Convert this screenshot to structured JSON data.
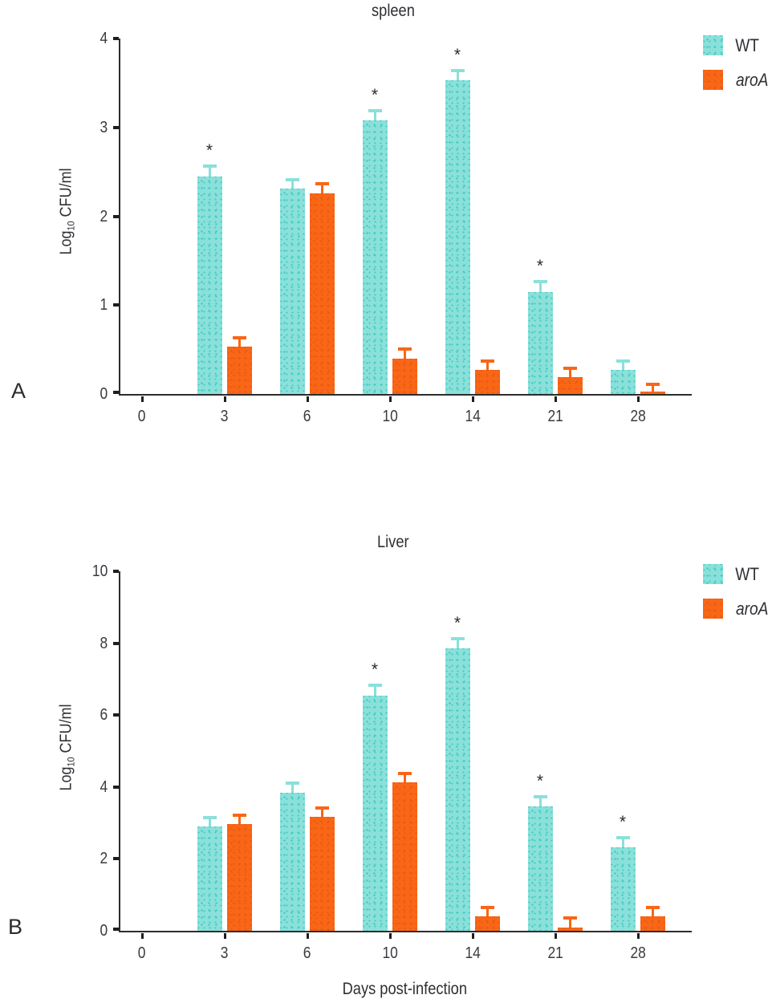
{
  "figure_title": "",
  "sig_marker": "*",
  "chart_data": [
    {
      "type": "bar",
      "panel_label": "A",
      "title": "spleen",
      "ylabel": "Log10 CFU/ml",
      "ylabel_parts": {
        "prefix": "Log",
        "sub": "10",
        "suffix": " CFU/ml"
      },
      "xlabel": "",
      "ylim": [
        0,
        4
      ],
      "yticks": [
        0,
        1,
        2,
        3,
        4
      ],
      "categories": [
        "0",
        "3",
        "6",
        "10",
        "14",
        "21",
        "28"
      ],
      "grid": false,
      "legend_position": "top-right",
      "series": [
        {
          "name": "WT",
          "color": "#8BE0DA",
          "dot_color": "#3FCCC4",
          "values": [
            0,
            2.45,
            2.31,
            3.08,
            3.53,
            1.15,
            0.27
          ],
          "errors": [
            0,
            0.13,
            0.12,
            0.13,
            0.13,
            0.13,
            0.12
          ],
          "significant": [
            false,
            true,
            false,
            true,
            true,
            true,
            false
          ]
        },
        {
          "name": "aroA",
          "color": "#F96617",
          "dot_color": "#E85A0C",
          "values": [
            0,
            0.53,
            2.26,
            0.4,
            0.27,
            0.19,
            0.03
          ],
          "errors": [
            0,
            0.12,
            0.12,
            0.12,
            0.12,
            0.12,
            0.1
          ],
          "significant": [
            false,
            false,
            false,
            false,
            false,
            false,
            false
          ]
        }
      ]
    },
    {
      "type": "bar",
      "panel_label": "B",
      "title": "Liver",
      "ylabel": "Log10 CFU/ml",
      "ylabel_parts": {
        "prefix": "Log",
        "sub": "10",
        "suffix": " CFU/ml"
      },
      "xlabel": "Days post-infection",
      "ylim": [
        0,
        10
      ],
      "yticks": [
        0,
        2,
        4,
        6,
        8,
        10
      ],
      "categories": [
        "0",
        "3",
        "6",
        "10",
        "14",
        "21",
        "28"
      ],
      "grid": false,
      "legend_position": "top-right",
      "series": [
        {
          "name": "WT",
          "color": "#8BE0DA",
          "dot_color": "#3FCCC4",
          "values": [
            0,
            2.9,
            3.85,
            6.55,
            7.85,
            3.45,
            2.33
          ],
          "errors": [
            0,
            0.3,
            0.3,
            0.33,
            0.32,
            0.33,
            0.3
          ],
          "significant": [
            false,
            false,
            false,
            true,
            true,
            true,
            true
          ]
        },
        {
          "name": "aroA",
          "color": "#F96617",
          "dot_color": "#E85A0C",
          "values": [
            0,
            2.97,
            3.17,
            4.12,
            0.4,
            0.08,
            0.4
          ],
          "errors": [
            0,
            0.28,
            0.28,
            0.3,
            0.3,
            0.33,
            0.3
          ],
          "significant": [
            false,
            false,
            false,
            false,
            false,
            false,
            false
          ]
        }
      ]
    }
  ]
}
